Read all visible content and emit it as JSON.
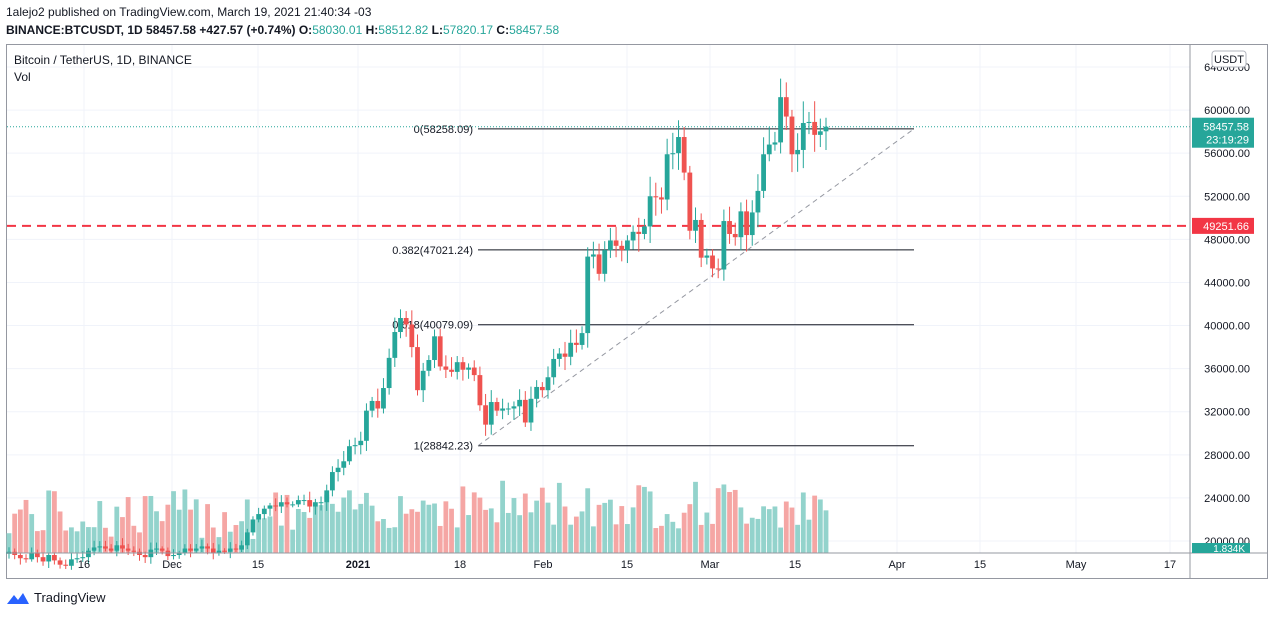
{
  "header": {
    "published_line": "1alejo2 published on TradingView.com, March 19, 2021 21:40:34 -03",
    "symbol": "BINANCE:BTCUSDT, 1D",
    "last": "58457.58",
    "change": "+427.57 (+0.74%)",
    "o_label": "O:",
    "o_value": "58030.01",
    "h_label": "H:",
    "h_value": "58512.82",
    "l_label": "L:",
    "l_value": "57820.17",
    "c_label": "C:",
    "c_value": "58457.58"
  },
  "legend": {
    "title": "Bitcoin / TetherUS, 1D, BINANCE",
    "vol": "Vol"
  },
  "colors": {
    "up": "#26a69a",
    "down": "#ef5350",
    "up_vol": "#93d3cc",
    "down_vol": "#f5a6a4"
  },
  "footer": {
    "brand": "TradingView",
    "icon": "tradingview-logo-icon"
  },
  "chart_data": {
    "type": "candlestick",
    "title": "Bitcoin / TetherUS, 1D, BINANCE",
    "currency_label": "USDT",
    "ylim": [
      18000,
      66000
    ],
    "y_ticks": [
      "20000.00",
      "24000.00",
      "28000.00",
      "32000.00",
      "36000.00",
      "40000.00",
      "44000.00",
      "48000.00",
      "52000.00",
      "56000.00",
      "60000.00",
      "64000.00"
    ],
    "x_ticks": [
      "16",
      "Dec",
      "15",
      "2021",
      "18",
      "Feb",
      "15",
      "Mar",
      "15",
      "Apr",
      "15",
      "May",
      "17"
    ],
    "price_label": "58457.58",
    "countdown_label": "23:19:29",
    "resistance_label": "49251.66",
    "resistance_value": 49251.66,
    "volume_label": "1.834K",
    "fib_levels": [
      {
        "label": "0(58258.09)",
        "value": 58258.09
      },
      {
        "label": "0.382(47021.24)",
        "value": 47021.24
      },
      {
        "label": "0.618(40079.09)",
        "value": 40079.09
      },
      {
        "label": "1(28842.23)",
        "value": 28842.23
      }
    ],
    "trendline": {
      "from_value": 28842.23,
      "to_value": 58258.09
    },
    "closes": [
      19000,
      18700,
      18400,
      18300,
      18900,
      18500,
      18100,
      18700,
      18200,
      17800,
      17700,
      18300,
      18400,
      18500,
      19100,
      19400,
      19500,
      19300,
      19100,
      19600,
      19300,
      19100,
      19000,
      18700,
      18500,
      19200,
      19300,
      19100,
      18600,
      18700,
      18900,
      19300,
      19100,
      19300,
      19500,
      19300,
      18900,
      19100,
      19000,
      19300,
      19200,
      19600,
      20800,
      22000,
      22500,
      23000,
      23300,
      23200,
      23600,
      23400,
      23400,
      23800,
      23800,
      23200,
      23600,
      23600,
      24700,
      26400,
      26800,
      27400,
      28800,
      28900,
      29300,
      32100,
      33000,
      32300,
      34200,
      37000,
      39400,
      40700,
      40100,
      38000,
      34000,
      35800,
      36800,
      39000,
      36200,
      35900,
      35700,
      36600,
      35900,
      36100,
      35400,
      32600,
      30800,
      32900,
      32100,
      32300,
      32300,
      32500,
      33100,
      31000,
      33200,
      34300,
      34000,
      35200,
      36900,
      37400,
      37100,
      38400,
      38200,
      39300,
      46400,
      46600,
      44800,
      47000,
      47900,
      47400,
      47000,
      47900,
      48700,
      48500,
      49200,
      52000,
      51900,
      51700,
      55900,
      56000,
      57500,
      54200,
      48800,
      49800,
      46300,
      46500,
      45300,
      45200,
      49700,
      48500,
      48200,
      50600,
      48400,
      50500,
      52500,
      55900,
      56800,
      57000,
      61200,
      59400,
      55900,
      56300,
      58800,
      58900,
      57700,
      58030,
      58457
    ]
  }
}
